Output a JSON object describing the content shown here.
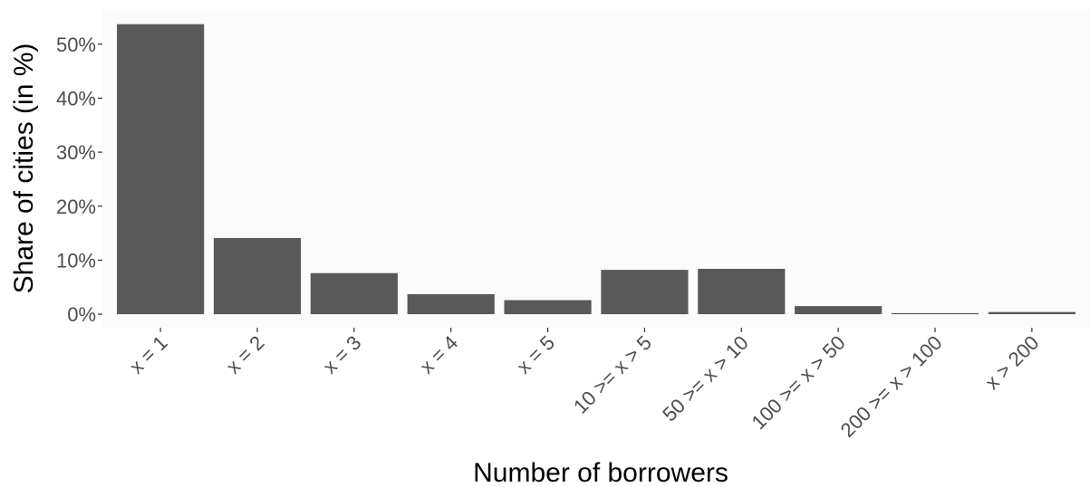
{
  "chart_data": {
    "type": "bar",
    "title": "",
    "xlabel": "Number of borrowers",
    "ylabel": "Share of cities (in %)",
    "categories": [
      "x = 1",
      "x = 2",
      "x = 3",
      "x = 4",
      "x = 5",
      "10 >= x > 5",
      "50 >= x > 10",
      "100 >= x > 50",
      "200 >= x > 100",
      "x > 200"
    ],
    "values": [
      53.7,
      14.1,
      7.6,
      3.7,
      2.6,
      8.2,
      8.4,
      1.5,
      0.2,
      0.4
    ],
    "ylim": [
      -2.5,
      56.5
    ],
    "yticks": [
      0,
      10,
      20,
      30,
      40,
      50
    ],
    "ytick_labels": [
      "0%",
      "10%",
      "20%",
      "30%",
      "40%",
      "50%"
    ],
    "grid": false,
    "legend": "none",
    "colors": {
      "bar": "#595959",
      "panel": "#fbfbfb",
      "tick_text": "#4d4d4d",
      "axis_title": "#000000"
    }
  }
}
